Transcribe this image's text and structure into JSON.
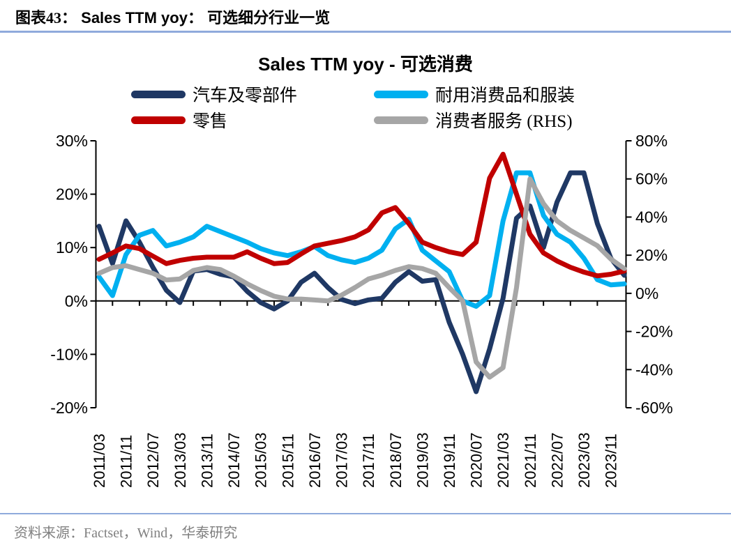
{
  "page": {
    "background": "#FFFFFF"
  },
  "header": {
    "label": "图表43：",
    "title_en": "Sales TTM yoy：",
    "title_zh": "可选细分行业一览",
    "rule_color": "#8FAADC"
  },
  "footer": {
    "source": "资料来源：Factset，Wind，华泰研究",
    "rule_color": "#8FAADC",
    "text_color": "#808080"
  },
  "chart_data": {
    "type": "line",
    "title": "Sales TTM yoy - 可选消费",
    "grid": false,
    "legend_position": "top",
    "x": [
      "2011/03",
      "2011/07",
      "2011/11",
      "2012/03",
      "2012/07",
      "2012/11",
      "2013/03",
      "2013/07",
      "2013/11",
      "2014/03",
      "2014/07",
      "2014/11",
      "2015/03",
      "2015/07",
      "2015/11",
      "2016/03",
      "2016/07",
      "2016/11",
      "2017/03",
      "2017/07",
      "2017/11",
      "2018/03",
      "2018/07",
      "2018/11",
      "2019/03",
      "2019/07",
      "2019/11",
      "2020/03",
      "2020/07",
      "2020/11",
      "2021/03",
      "2021/07",
      "2021/11",
      "2022/03",
      "2022/07",
      "2022/11",
      "2023/03",
      "2023/07",
      "2023/11",
      "2024/03"
    ],
    "x_tick_labels": [
      "2011/03",
      "2011/11",
      "2012/07",
      "2013/03",
      "2013/11",
      "2014/07",
      "2015/03",
      "2015/11",
      "2016/07",
      "2017/03",
      "2017/11",
      "2018/07",
      "2019/03",
      "2019/11",
      "2020/07",
      "2021/03",
      "2021/11",
      "2022/07",
      "2023/03",
      "2023/11"
    ],
    "left_axis": {
      "ticks": [
        30,
        20,
        10,
        0,
        -10,
        -20
      ],
      "range": [
        -20,
        30
      ],
      "unit": "%"
    },
    "right_axis": {
      "ticks": [
        80,
        60,
        40,
        20,
        0,
        -20,
        -40,
        -60
      ],
      "range": [
        -60,
        80
      ],
      "unit": "%"
    },
    "series": [
      {
        "key": "autos",
        "name": "汽车及零部件",
        "axis": "left",
        "color": "#1F3864",
        "values": [
          14,
          7,
          15,
          11,
          6.3,
          2,
          -0.3,
          5.6,
          5.9,
          5,
          4.5,
          1.8,
          -0.3,
          -1.5,
          0,
          3.5,
          5.2,
          2.5,
          0.3,
          -0.5,
          0.2,
          0.5,
          3.5,
          5.5,
          3.7,
          4,
          -4,
          -10,
          -17,
          -9,
          0.5,
          15.5,
          17.8,
          10,
          18.5,
          24,
          24,
          14.5,
          8,
          4.8
        ]
      },
      {
        "key": "durables",
        "name": "耐用消费品和服装",
        "axis": "left",
        "color": "#00B0F0",
        "values": [
          4.5,
          1,
          8.7,
          12.3,
          13.2,
          10.3,
          11,
          12,
          14,
          13,
          12,
          11,
          9.8,
          9,
          8.5,
          9.2,
          10.2,
          8.5,
          7.7,
          7.2,
          8,
          9.5,
          13.5,
          15.3,
          9.5,
          7.5,
          5.5,
          0,
          -1,
          1,
          15,
          24,
          24,
          16,
          12.5,
          11,
          8,
          4,
          3,
          3.2
        ]
      },
      {
        "key": "retail",
        "name": "零售",
        "axis": "left",
        "color": "#C00000",
        "values": [
          7.8,
          9,
          10.3,
          9.8,
          8.4,
          7,
          7.6,
          8,
          8.2,
          8.2,
          8.2,
          9.2,
          8,
          7,
          7.2,
          8.8,
          10.3,
          10.8,
          11.3,
          12,
          13.3,
          16.5,
          17.5,
          14.5,
          11,
          10,
          9.2,
          8.7,
          11,
          23,
          27.5,
          20,
          12.5,
          9,
          7.5,
          6.3,
          5.4,
          4.7,
          5,
          5.6
        ]
      },
      {
        "key": "consumer_services",
        "name": "消费者服务 (RHS)",
        "axis": "right",
        "color": "#A6A6A6",
        "values": [
          10.5,
          13.5,
          14.5,
          12.5,
          10.5,
          7,
          7.5,
          12,
          13.5,
          12.5,
          9,
          5,
          1.5,
          -1.5,
          -3,
          -3,
          -3.5,
          -4,
          -1,
          3,
          7.5,
          9.5,
          12,
          14,
          13,
          10.5,
          3,
          -4,
          -36,
          -44,
          -39,
          3,
          60,
          47,
          38,
          33,
          29,
          25,
          18,
          13
        ]
      }
    ]
  }
}
